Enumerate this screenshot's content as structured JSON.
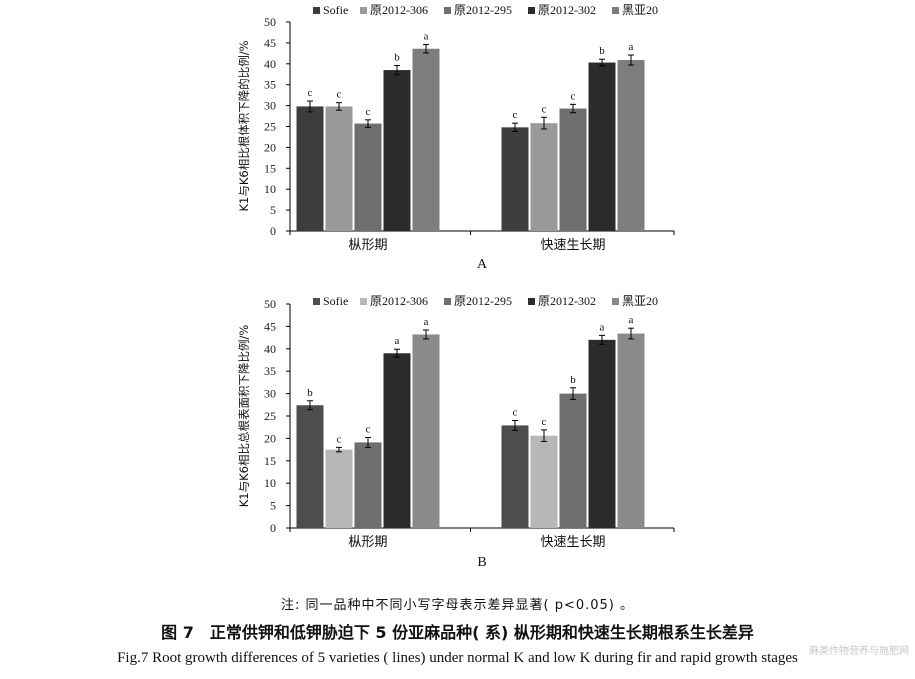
{
  "chart_data": [
    {
      "type": "bar",
      "panel_label": "A",
      "ylabel": "K1与K6相比根体积下降的比例/%",
      "ylim": [
        0,
        50
      ],
      "yticks": [
        0,
        5,
        10,
        15,
        20,
        25,
        30,
        35,
        40,
        45,
        50
      ],
      "categories": [
        "枞形期",
        "快速生长期"
      ],
      "series": [
        {
          "name": "Sofie",
          "color": "#3d3d3d",
          "values": [
            29.8,
            24.8
          ],
          "errors": [
            1.3,
            1.0
          ],
          "labels": [
            "c",
            "c"
          ]
        },
        {
          "name": "原2012-306",
          "color": "#9a9a9a",
          "values": [
            29.8,
            25.8
          ],
          "errors": [
            0.9,
            1.4
          ],
          "labels": [
            "c",
            "c"
          ]
        },
        {
          "name": "原2012-295",
          "color": "#6e6e6e",
          "values": [
            25.7,
            29.3
          ],
          "errors": [
            0.9,
            1.0
          ],
          "labels": [
            "c",
            "c"
          ]
        },
        {
          "name": "原2012-302",
          "color": "#2b2b2b",
          "values": [
            38.5,
            40.3
          ],
          "errors": [
            1.1,
            0.8
          ],
          "labels": [
            "b",
            "b"
          ]
        },
        {
          "name": "黑亚20",
          "color": "#7d7d7d",
          "values": [
            43.6,
            40.9
          ],
          "errors": [
            1.0,
            1.2
          ],
          "labels": [
            "a",
            "a"
          ]
        }
      ],
      "legend": "top"
    },
    {
      "type": "bar",
      "panel_label": "B",
      "ylabel": "K1与K6相比总根表面积下降比例/%",
      "ylim": [
        0,
        50
      ],
      "yticks": [
        0,
        5,
        10,
        15,
        20,
        25,
        30,
        35,
        40,
        45,
        50
      ],
      "categories": [
        "枞形期",
        "快速生长期"
      ],
      "series": [
        {
          "name": "Sofie",
          "color": "#4d4d4d",
          "values": [
            27.4,
            22.9
          ],
          "errors": [
            1.0,
            1.1
          ],
          "labels": [
            "b",
            "c"
          ]
        },
        {
          "name": "原2012-306",
          "color": "#b7b7b7",
          "values": [
            17.5,
            20.6
          ],
          "errors": [
            0.5,
            1.3
          ],
          "labels": [
            "c",
            "c"
          ]
        },
        {
          "name": "原2012-295",
          "color": "#6e6e6e",
          "values": [
            19.1,
            30.0
          ],
          "errors": [
            1.1,
            1.3
          ],
          "labels": [
            "c",
            "b"
          ]
        },
        {
          "name": "原2012-302",
          "color": "#2b2b2b",
          "values": [
            39.0,
            42.0
          ],
          "errors": [
            0.9,
            1.0
          ],
          "labels": [
            "a",
            "a"
          ]
        },
        {
          "name": "黑亚20",
          "color": "#8a8a8a",
          "values": [
            43.2,
            43.4
          ],
          "errors": [
            1.0,
            1.2
          ],
          "labels": [
            "a",
            "a"
          ]
        }
      ],
      "legend": "top"
    }
  ],
  "note": "注: 同一品种中不同小写字母表示差异显著( p<0.05) 。",
  "caption_cn": "图 7　正常供钾和低钾胁迫下 5 份亚麻品种( 系) 枞形期和快速生长期根系生长差异",
  "caption_en": "Fig.7   Root growth differences of 5 varieties ( lines)  under normal K and low K during fir and rapid growth stages",
  "watermark": "麻类作物营养与施肥网"
}
